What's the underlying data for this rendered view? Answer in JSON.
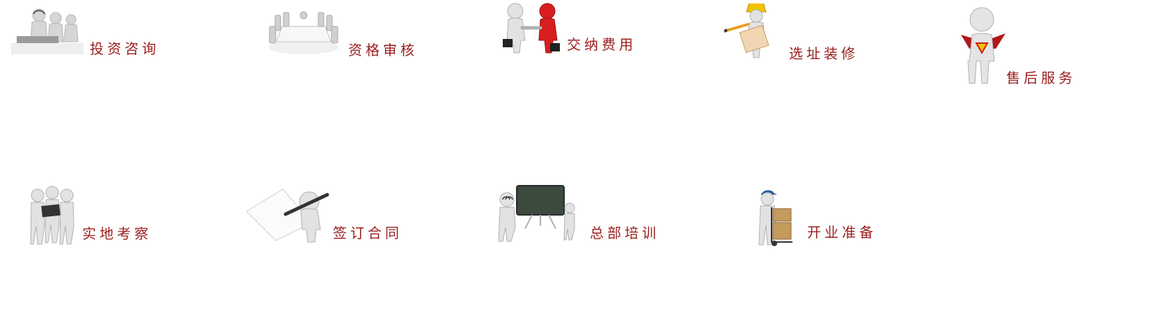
{
  "steps": [
    {
      "id": "consult",
      "label": "投资咨询",
      "icon": "call-center-icon"
    },
    {
      "id": "review",
      "label": "资格审核",
      "icon": "meeting-table-icon"
    },
    {
      "id": "fee",
      "label": "交纳费用",
      "icon": "handshake-icon"
    },
    {
      "id": "site",
      "label": "选址装修",
      "icon": "construction-worker-icon"
    },
    {
      "id": "service",
      "label": "售后服务",
      "icon": "superhero-icon"
    },
    {
      "id": "visit",
      "label": "实地考察",
      "icon": "group-reading-icon"
    },
    {
      "id": "contract",
      "label": "签订合同",
      "icon": "sign-contract-icon"
    },
    {
      "id": "training",
      "label": "总部培训",
      "icon": "blackboard-training-icon"
    },
    {
      "id": "opening",
      "label": "开业准备",
      "icon": "delivery-cart-icon"
    }
  ],
  "colors": {
    "label": "#9b1c1c",
    "figure": "#e4e4e4",
    "figure_shade": "#c9c9c9",
    "accent_red": "#d21a1a",
    "board": "#3c4a3e",
    "helmet": "#f2c200",
    "box": "#c49a5d",
    "cap": "#2d5f9e"
  }
}
